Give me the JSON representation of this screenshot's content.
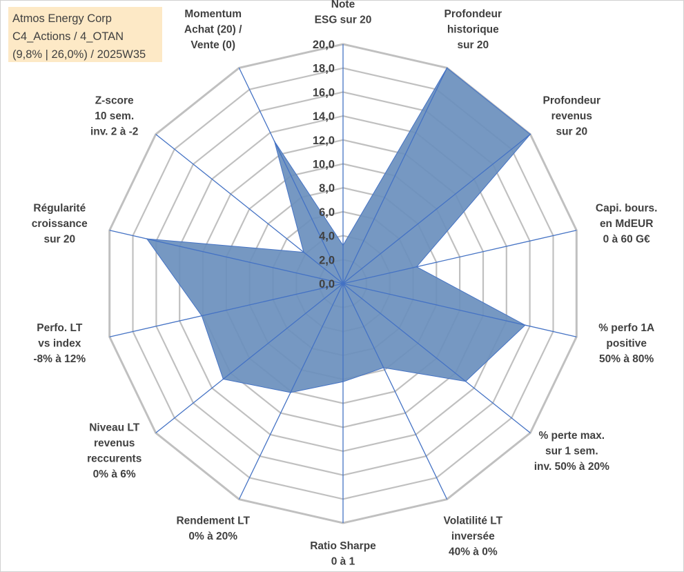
{
  "header": {
    "line1": "Atmos Energy Corp",
    "line2": "C4_Actions / 4_OTAN",
    "line3": "(9,8% | 26,0%) / 2025W35"
  },
  "colors": {
    "fill": "#6a8fbd",
    "line": "#4472c4",
    "grid": "#c0c0c0",
    "text": "#404040",
    "header_bg": "#fde9c6"
  },
  "chart_data": {
    "type": "radar",
    "title": "",
    "rmin": 0,
    "rmax": 20,
    "ticks": [
      "0,0",
      "2,0",
      "4,0",
      "6,0",
      "8,0",
      "10,0",
      "12,0",
      "14,0",
      "16,0",
      "18,0",
      "20,0"
    ],
    "categories": [
      [
        "Note",
        "ESG sur 20"
      ],
      [
        "Profondeur",
        "historique",
        "sur 20"
      ],
      [
        "Profondeur",
        "revenus",
        "sur 20"
      ],
      [
        "Capi. bours.",
        "en MdEUR",
        "0 à 60 G€"
      ],
      [
        "% perfo 1A",
        "positive",
        "50% à 80%"
      ],
      [
        "% perte max.",
        "sur 1 sem.",
        "inv. 50% à 20%"
      ],
      [
        "Volatilité LT",
        "inversée",
        "40% à 0%"
      ],
      [
        "Ratio Sharpe",
        "0 à 1"
      ],
      [
        "Rendement LT",
        "0% à 20%"
      ],
      [
        "Niveau LT",
        "revenus",
        "reccurents",
        "0% à 6%"
      ],
      [
        "Perfo. LT",
        "vs index",
        "-8% à 12%"
      ],
      [
        "Régularité",
        "croissance",
        "sur 20"
      ],
      [
        "Z-score",
        "10 sem.",
        "inv. 2 à -2"
      ],
      [
        "Momentum",
        "Achat (20) /",
        "Vente (0)"
      ]
    ],
    "series": [
      {
        "values": [
          3.2,
          20.0,
          20.0,
          6.3,
          15.6,
          13.1,
          7.8,
          8.2,
          10.1,
          12.8,
          12.1,
          16.8,
          4.2,
          13.2
        ]
      }
    ],
    "legend": "none",
    "grid": true
  }
}
